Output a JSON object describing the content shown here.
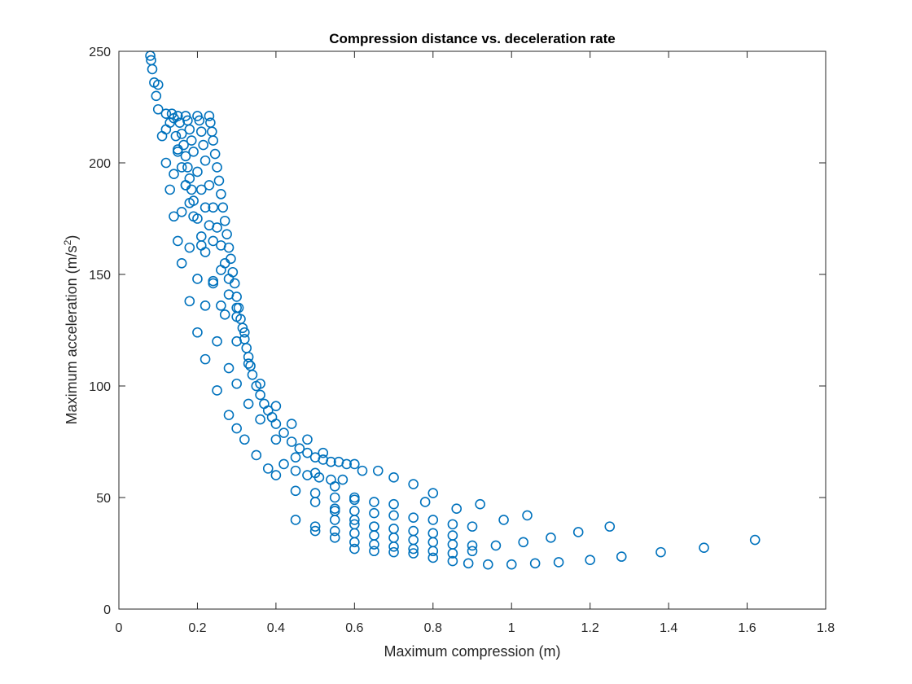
{
  "chart_data": {
    "type": "scatter",
    "title": "Compression distance vs. deceleration rate",
    "xlabel": "Maximum compression (m)",
    "ylabel_main": "Maximum acceleration (m/s",
    "ylabel_sup": "2",
    "ylabel_tail": ")",
    "xlim": [
      0,
      1.8
    ],
    "ylim": [
      0,
      250
    ],
    "xticks": [
      0,
      0.2,
      0.4,
      0.6,
      0.8,
      1,
      1.2,
      1.4,
      1.6,
      1.8
    ],
    "xtick_labels": [
      "0",
      "0.2",
      "0.4",
      "0.6",
      "0.8",
      "1",
      "1.2",
      "1.4",
      "1.6",
      "1.8"
    ],
    "yticks": [
      0,
      50,
      100,
      150,
      200,
      250
    ],
    "ytick_labels": [
      "0",
      "50",
      "100",
      "150",
      "200",
      "250"
    ],
    "grid": false,
    "legend": "none",
    "marker": "circle-open",
    "color": "#0072bd",
    "series": [
      {
        "points": [
          [
            0.08,
            248
          ],
          [
            0.082,
            246
          ],
          [
            0.085,
            242
          ],
          [
            0.09,
            236
          ],
          [
            0.095,
            230
          ],
          [
            0.1,
            224
          ],
          [
            0.11,
            212
          ],
          [
            0.12,
            200
          ],
          [
            0.13,
            188
          ],
          [
            0.14,
            176
          ],
          [
            0.15,
            165
          ],
          [
            0.16,
            155
          ],
          [
            0.18,
            138
          ],
          [
            0.2,
            124
          ],
          [
            0.22,
            112
          ],
          [
            0.25,
            98
          ],
          [
            0.28,
            87
          ],
          [
            0.3,
            81
          ],
          [
            0.32,
            76
          ],
          [
            0.35,
            69
          ],
          [
            0.38,
            63
          ],
          [
            0.4,
            60
          ],
          [
            0.45,
            53
          ],
          [
            0.5,
            48
          ],
          [
            0.55,
            44
          ],
          [
            0.6,
            40
          ],
          [
            0.65,
            37
          ],
          [
            0.1,
            235
          ],
          [
            0.12,
            215
          ],
          [
            0.14,
            195
          ],
          [
            0.16,
            178
          ],
          [
            0.18,
            162
          ],
          [
            0.2,
            148
          ],
          [
            0.22,
            136
          ],
          [
            0.25,
            120
          ],
          [
            0.28,
            108
          ],
          [
            0.3,
            101
          ],
          [
            0.33,
            92
          ],
          [
            0.36,
            85
          ],
          [
            0.4,
            76
          ],
          [
            0.45,
            68
          ],
          [
            0.5,
            61
          ],
          [
            0.55,
            55
          ],
          [
            0.6,
            50
          ],
          [
            0.12,
            222
          ],
          [
            0.13,
            218
          ],
          [
            0.15,
            205
          ],
          [
            0.17,
            190
          ],
          [
            0.19,
            176
          ],
          [
            0.21,
            163
          ],
          [
            0.24,
            146
          ],
          [
            0.27,
            132
          ],
          [
            0.3,
            120
          ],
          [
            0.33,
            110
          ],
          [
            0.36,
            101
          ],
          [
            0.4,
            91
          ],
          [
            0.44,
            83
          ],
          [
            0.48,
            76
          ],
          [
            0.52,
            70
          ],
          [
            0.135,
            222
          ],
          [
            0.14,
            220
          ],
          [
            0.145,
            212
          ],
          [
            0.15,
            206
          ],
          [
            0.16,
            198
          ],
          [
            0.17,
            190
          ],
          [
            0.18,
            182
          ],
          [
            0.15,
            221
          ],
          [
            0.155,
            218
          ],
          [
            0.16,
            213
          ],
          [
            0.165,
            208
          ],
          [
            0.17,
            203
          ],
          [
            0.175,
            198
          ],
          [
            0.18,
            193
          ],
          [
            0.185,
            188
          ],
          [
            0.19,
            183
          ],
          [
            0.2,
            175
          ],
          [
            0.21,
            167
          ],
          [
            0.22,
            160
          ],
          [
            0.24,
            147
          ],
          [
            0.26,
            136
          ],
          [
            0.17,
            221
          ],
          [
            0.175,
            219
          ],
          [
            0.18,
            215
          ],
          [
            0.185,
            210
          ],
          [
            0.19,
            205
          ],
          [
            0.2,
            196
          ],
          [
            0.21,
            188
          ],
          [
            0.22,
            180
          ],
          [
            0.23,
            172
          ],
          [
            0.24,
            165
          ],
          [
            0.26,
            152
          ],
          [
            0.28,
            141
          ],
          [
            0.3,
            131
          ],
          [
            0.2,
            221
          ],
          [
            0.205,
            219
          ],
          [
            0.21,
            214
          ],
          [
            0.215,
            208
          ],
          [
            0.22,
            201
          ],
          [
            0.23,
            190
          ],
          [
            0.24,
            180
          ],
          [
            0.25,
            171
          ],
          [
            0.26,
            163
          ],
          [
            0.27,
            155
          ],
          [
            0.28,
            148
          ],
          [
            0.3,
            135
          ],
          [
            0.32,
            124
          ],
          [
            0.23,
            221
          ],
          [
            0.233,
            218
          ],
          [
            0.237,
            214
          ],
          [
            0.24,
            210
          ],
          [
            0.245,
            204
          ],
          [
            0.25,
            198
          ],
          [
            0.255,
            192
          ],
          [
            0.26,
            186
          ],
          [
            0.265,
            180
          ],
          [
            0.27,
            174
          ],
          [
            0.275,
            168
          ],
          [
            0.28,
            162
          ],
          [
            0.285,
            157
          ],
          [
            0.29,
            151
          ],
          [
            0.295,
            146
          ],
          [
            0.3,
            140
          ],
          [
            0.305,
            135
          ],
          [
            0.31,
            130
          ],
          [
            0.315,
            126
          ],
          [
            0.32,
            121
          ],
          [
            0.325,
            117
          ],
          [
            0.33,
            113
          ],
          [
            0.335,
            109
          ],
          [
            0.34,
            105
          ],
          [
            0.35,
            100
          ],
          [
            0.36,
            96
          ],
          [
            0.37,
            92
          ],
          [
            0.38,
            89
          ],
          [
            0.39,
            86
          ],
          [
            0.4,
            83
          ],
          [
            0.42,
            79
          ],
          [
            0.44,
            75
          ],
          [
            0.46,
            72
          ],
          [
            0.48,
            70
          ],
          [
            0.5,
            68
          ],
          [
            0.52,
            67
          ],
          [
            0.54,
            66
          ],
          [
            0.56,
            66
          ],
          [
            0.58,
            65
          ],
          [
            0.6,
            65
          ],
          [
            0.42,
            65
          ],
          [
            0.45,
            62
          ],
          [
            0.48,
            60
          ],
          [
            0.51,
            59
          ],
          [
            0.54,
            58
          ],
          [
            0.57,
            58
          ],
          [
            0.62,
            62
          ],
          [
            0.66,
            62
          ],
          [
            0.7,
            59
          ],
          [
            0.75,
            56
          ],
          [
            0.8,
            52
          ],
          [
            0.5,
            52
          ],
          [
            0.55,
            50
          ],
          [
            0.6,
            49
          ],
          [
            0.65,
            48
          ],
          [
            0.7,
            47
          ],
          [
            0.78,
            48
          ],
          [
            0.86,
            45
          ],
          [
            0.92,
            47
          ],
          [
            0.98,
            40
          ],
          [
            1.04,
            42
          ],
          [
            0.55,
            45
          ],
          [
            0.6,
            44
          ],
          [
            0.65,
            43
          ],
          [
            0.7,
            42
          ],
          [
            0.75,
            41
          ],
          [
            0.8,
            40
          ],
          [
            0.85,
            38
          ],
          [
            0.9,
            37
          ],
          [
            0.55,
            40
          ],
          [
            0.6,
            38
          ],
          [
            0.65,
            37
          ],
          [
            0.7,
            36
          ],
          [
            0.75,
            35
          ],
          [
            0.8,
            34
          ],
          [
            0.85,
            33
          ],
          [
            0.5,
            37
          ],
          [
            0.55,
            35
          ],
          [
            0.6,
            34
          ],
          [
            0.65,
            33
          ],
          [
            0.7,
            32
          ],
          [
            0.75,
            31
          ],
          [
            0.8,
            30
          ],
          [
            0.85,
            29
          ],
          [
            0.9,
            28.5
          ],
          [
            0.96,
            28.5
          ],
          [
            1.03,
            30
          ],
          [
            1.1,
            32
          ],
          [
            1.17,
            34.5
          ],
          [
            1.25,
            37
          ],
          [
            0.45,
            40
          ],
          [
            0.5,
            35
          ],
          [
            0.55,
            32
          ],
          [
            0.6,
            30
          ],
          [
            0.65,
            29
          ],
          [
            0.7,
            28
          ],
          [
            0.75,
            27
          ],
          [
            0.8,
            26
          ],
          [
            0.85,
            25
          ],
          [
            0.9,
            26
          ],
          [
            0.6,
            27
          ],
          [
            0.65,
            26
          ],
          [
            0.7,
            25.5
          ],
          [
            0.75,
            25
          ],
          [
            0.8,
            23
          ],
          [
            0.85,
            21.5
          ],
          [
            0.89,
            20.5
          ],
          [
            0.94,
            20
          ],
          [
            1.0,
            20
          ],
          [
            1.06,
            20.5
          ],
          [
            1.12,
            21
          ],
          [
            1.2,
            22
          ],
          [
            1.28,
            23.5
          ],
          [
            1.38,
            25.5
          ],
          [
            1.49,
            27.5
          ],
          [
            1.62,
            31
          ]
        ]
      }
    ]
  }
}
